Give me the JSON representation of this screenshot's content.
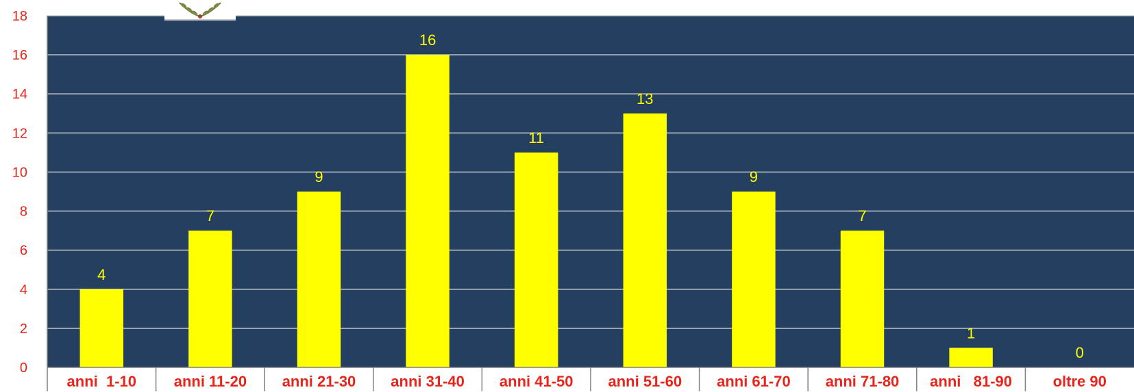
{
  "colors": {
    "plot_background": "#243f60",
    "bar": "#ffff00",
    "gridline": "#c8cdd6",
    "axis_text": "#e8241b",
    "data_label": "#ffff00"
  },
  "logo": {
    "icon": "laurel-emblem-icon"
  },
  "chart_data": {
    "type": "bar",
    "categories": [
      "anni  1-10",
      "anni 11-20",
      "anni 21-30",
      "anni 31-40",
      "anni 41-50",
      "anni 51-60",
      "anni 61-70",
      "anni 71-80",
      "anni   81-90",
      "oltre 90"
    ],
    "values": [
      4,
      7,
      9,
      16,
      11,
      13,
      9,
      7,
      1,
      0
    ],
    "data_labels": [
      "4",
      "7",
      "9",
      "16",
      "11",
      "13",
      "9",
      "7",
      "1",
      "0"
    ],
    "yticks": [
      "0",
      "2",
      "4",
      "6",
      "8",
      "10",
      "12",
      "14",
      "16",
      "18"
    ],
    "ylim": [
      0,
      18
    ],
    "title": "",
    "xlabel": "",
    "ylabel": "",
    "grid": true,
    "legend": "none"
  }
}
